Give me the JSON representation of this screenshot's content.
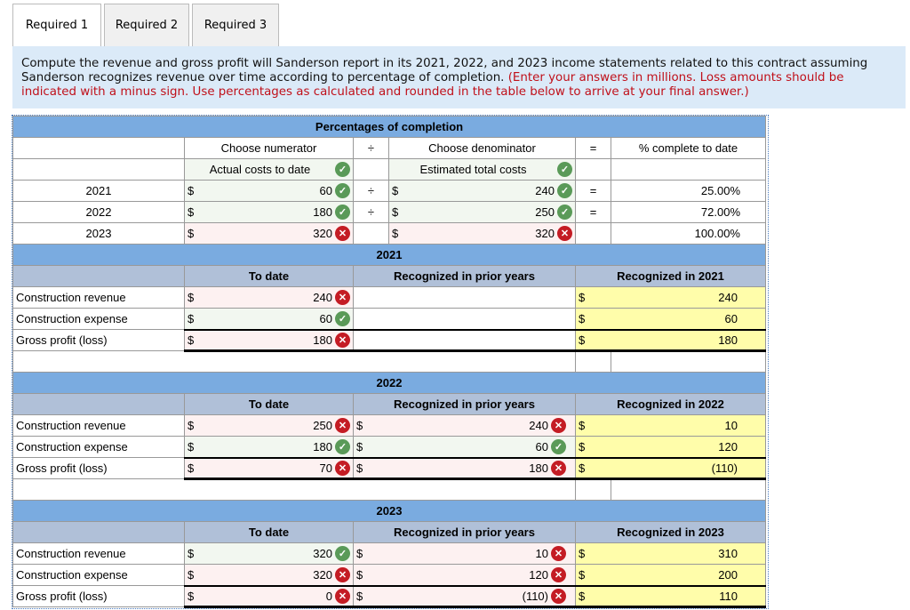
{
  "tabs": [
    "Required 1",
    "Required 2",
    "Required 3"
  ],
  "instructions": {
    "black": "Compute the revenue and gross profit will Sanderson report in its 2021, 2022, and 2023 income statements related to this contract assuming Sanderson recognizes revenue over time according to percentage of completion. ",
    "red": "(Enter your answers in millions. Loss amounts should be indicated with a minus sign. Use percentages as calculated and rounded in the table below to arrive at your final answer.)"
  },
  "completion": {
    "title": "Percentages of completion",
    "numerator_header": "Choose numerator",
    "divide": "÷",
    "denominator_header": "Choose denominator",
    "equals": "=",
    "result_header": "% complete to date",
    "numerator": {
      "value": "Actual costs to date",
      "status": "correct"
    },
    "denominator": {
      "value": "Estimated total costs",
      "status": "correct"
    },
    "rows": [
      {
        "year": "2021",
        "num": "60",
        "num_status": "correct",
        "den": "240",
        "den_status": "correct",
        "pct": "25.00%"
      },
      {
        "year": "2022",
        "num": "180",
        "num_status": "correct",
        "den": "250",
        "den_status": "correct",
        "pct": "72.00%"
      },
      {
        "year": "2023",
        "num": "320",
        "num_status": "incorrect",
        "den": "320",
        "den_status": "incorrect",
        "pct": "100.00%"
      }
    ]
  },
  "currency": "$",
  "sections": [
    {
      "year": "2021",
      "headers": [
        "To date",
        "Recognized in prior years",
        "Recognized in 2021"
      ],
      "rows": [
        {
          "label": "Construction revenue",
          "to_date": "240",
          "to_date_status": "incorrect",
          "prior": null,
          "recognized": "240"
        },
        {
          "label": "Construction expense",
          "to_date": "60",
          "to_date_status": "correct",
          "prior": null,
          "recognized": "60"
        },
        {
          "label": "Gross profit (loss)",
          "to_date": "180",
          "to_date_status": "incorrect",
          "prior": null,
          "recognized": "180"
        }
      ]
    },
    {
      "year": "2022",
      "headers": [
        "To date",
        "Recognized in prior years",
        "Recognized in 2022"
      ],
      "rows": [
        {
          "label": "Construction revenue",
          "to_date": "250",
          "to_date_status": "incorrect",
          "prior": "240",
          "prior_status": "incorrect",
          "recognized": "10"
        },
        {
          "label": "Construction expense",
          "to_date": "180",
          "to_date_status": "correct",
          "prior": "60",
          "prior_status": "correct",
          "recognized": "120"
        },
        {
          "label": "Gross profit (loss)",
          "to_date": "70",
          "to_date_status": "incorrect",
          "prior": "180",
          "prior_status": "incorrect",
          "recognized": "(110)"
        }
      ]
    },
    {
      "year": "2023",
      "headers": [
        "To date",
        "Recognized in prior years",
        "Recognized in 2023"
      ],
      "rows": [
        {
          "label": "Construction revenue",
          "to_date": "320",
          "to_date_status": "correct",
          "prior": "10",
          "prior_status": "incorrect",
          "recognized": "310"
        },
        {
          "label": "Construction expense",
          "to_date": "320",
          "to_date_status": "incorrect",
          "prior": "120",
          "prior_status": "incorrect",
          "recognized": "200"
        },
        {
          "label": "Gross profit (loss)",
          "to_date": "0",
          "to_date_status": "incorrect",
          "prior": "(110)",
          "prior_status": "incorrect",
          "recognized": "110"
        }
      ]
    }
  ]
}
